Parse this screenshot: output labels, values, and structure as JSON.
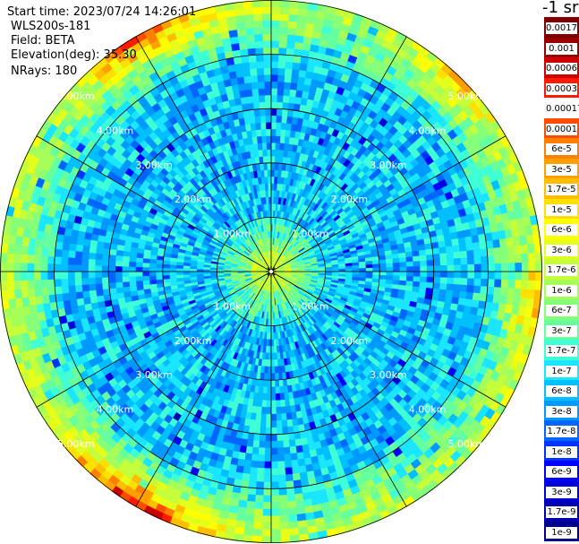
{
  "header": {
    "start_time": "Start time: 2023/07/24 14:26:01",
    "instrument": "WLS200s-181",
    "field": "Field: BETA",
    "elevation": "Elevation(deg): 35.30",
    "nrays": "NRays: 180"
  },
  "chart_data": {
    "type": "heatmap",
    "projection": "polar-ppi",
    "field": "BETA",
    "instrument": "WLS200s-181",
    "elevation_deg": 35.3,
    "n_rays": 180,
    "max_range_km": 5.0,
    "range_rings_km": [
      1,
      2,
      3,
      4,
      5
    ],
    "range_ring_labels": [
      "1.00km",
      "2.00km",
      "3.00km",
      "4.00km",
      "5.00km"
    ],
    "radial_spokes_deg": [
      0,
      30,
      60,
      90,
      120,
      150,
      180,
      210,
      240,
      270,
      300,
      330
    ],
    "typical_values": {
      "near_center": "3e-7",
      "inner_ring": "1.7e-7",
      "mid_field": "1e-8",
      "outer_edge_typical": "3e-8",
      "outer_edge_peaks": "6e-5"
    },
    "colorbar": {
      "title": "-1 sr",
      "labels": [
        "0.0017",
        "0.001",
        "0.0006",
        "0.0003",
        "0.00017",
        "0.0001",
        "6e-5",
        "3e-5",
        "1.7e-5",
        "1e-5",
        "6e-6",
        "3e-6",
        "1.7e-6",
        "1e-6",
        "6e-7",
        "3e-7",
        "1.7e-7",
        "1e-7",
        "6e-8",
        "3e-8",
        "1.7e-8",
        "1e-8",
        "6e-9",
        "3e-9",
        "1.7e-9",
        "1e-9"
      ],
      "colors": [
        "#7f0000",
        "#990000",
        "#cc0000",
        "#ff1a00",
        "#ffffff",
        "#ff4d00",
        "#ff8000",
        "#ff9f00",
        "#ffbf00",
        "#ffe000",
        "#ffff00",
        "#e6ff1a",
        "#c6ff39",
        "#a6ff59",
        "#86ff79",
        "#66ffa0",
        "#3fffd6",
        "#1ae6ff",
        "#00c0ff",
        "#0099ff",
        "#0066ff",
        "#0033ff",
        "#0000ff",
        "#0000d9",
        "#0000b3",
        "#00008c"
      ]
    }
  }
}
